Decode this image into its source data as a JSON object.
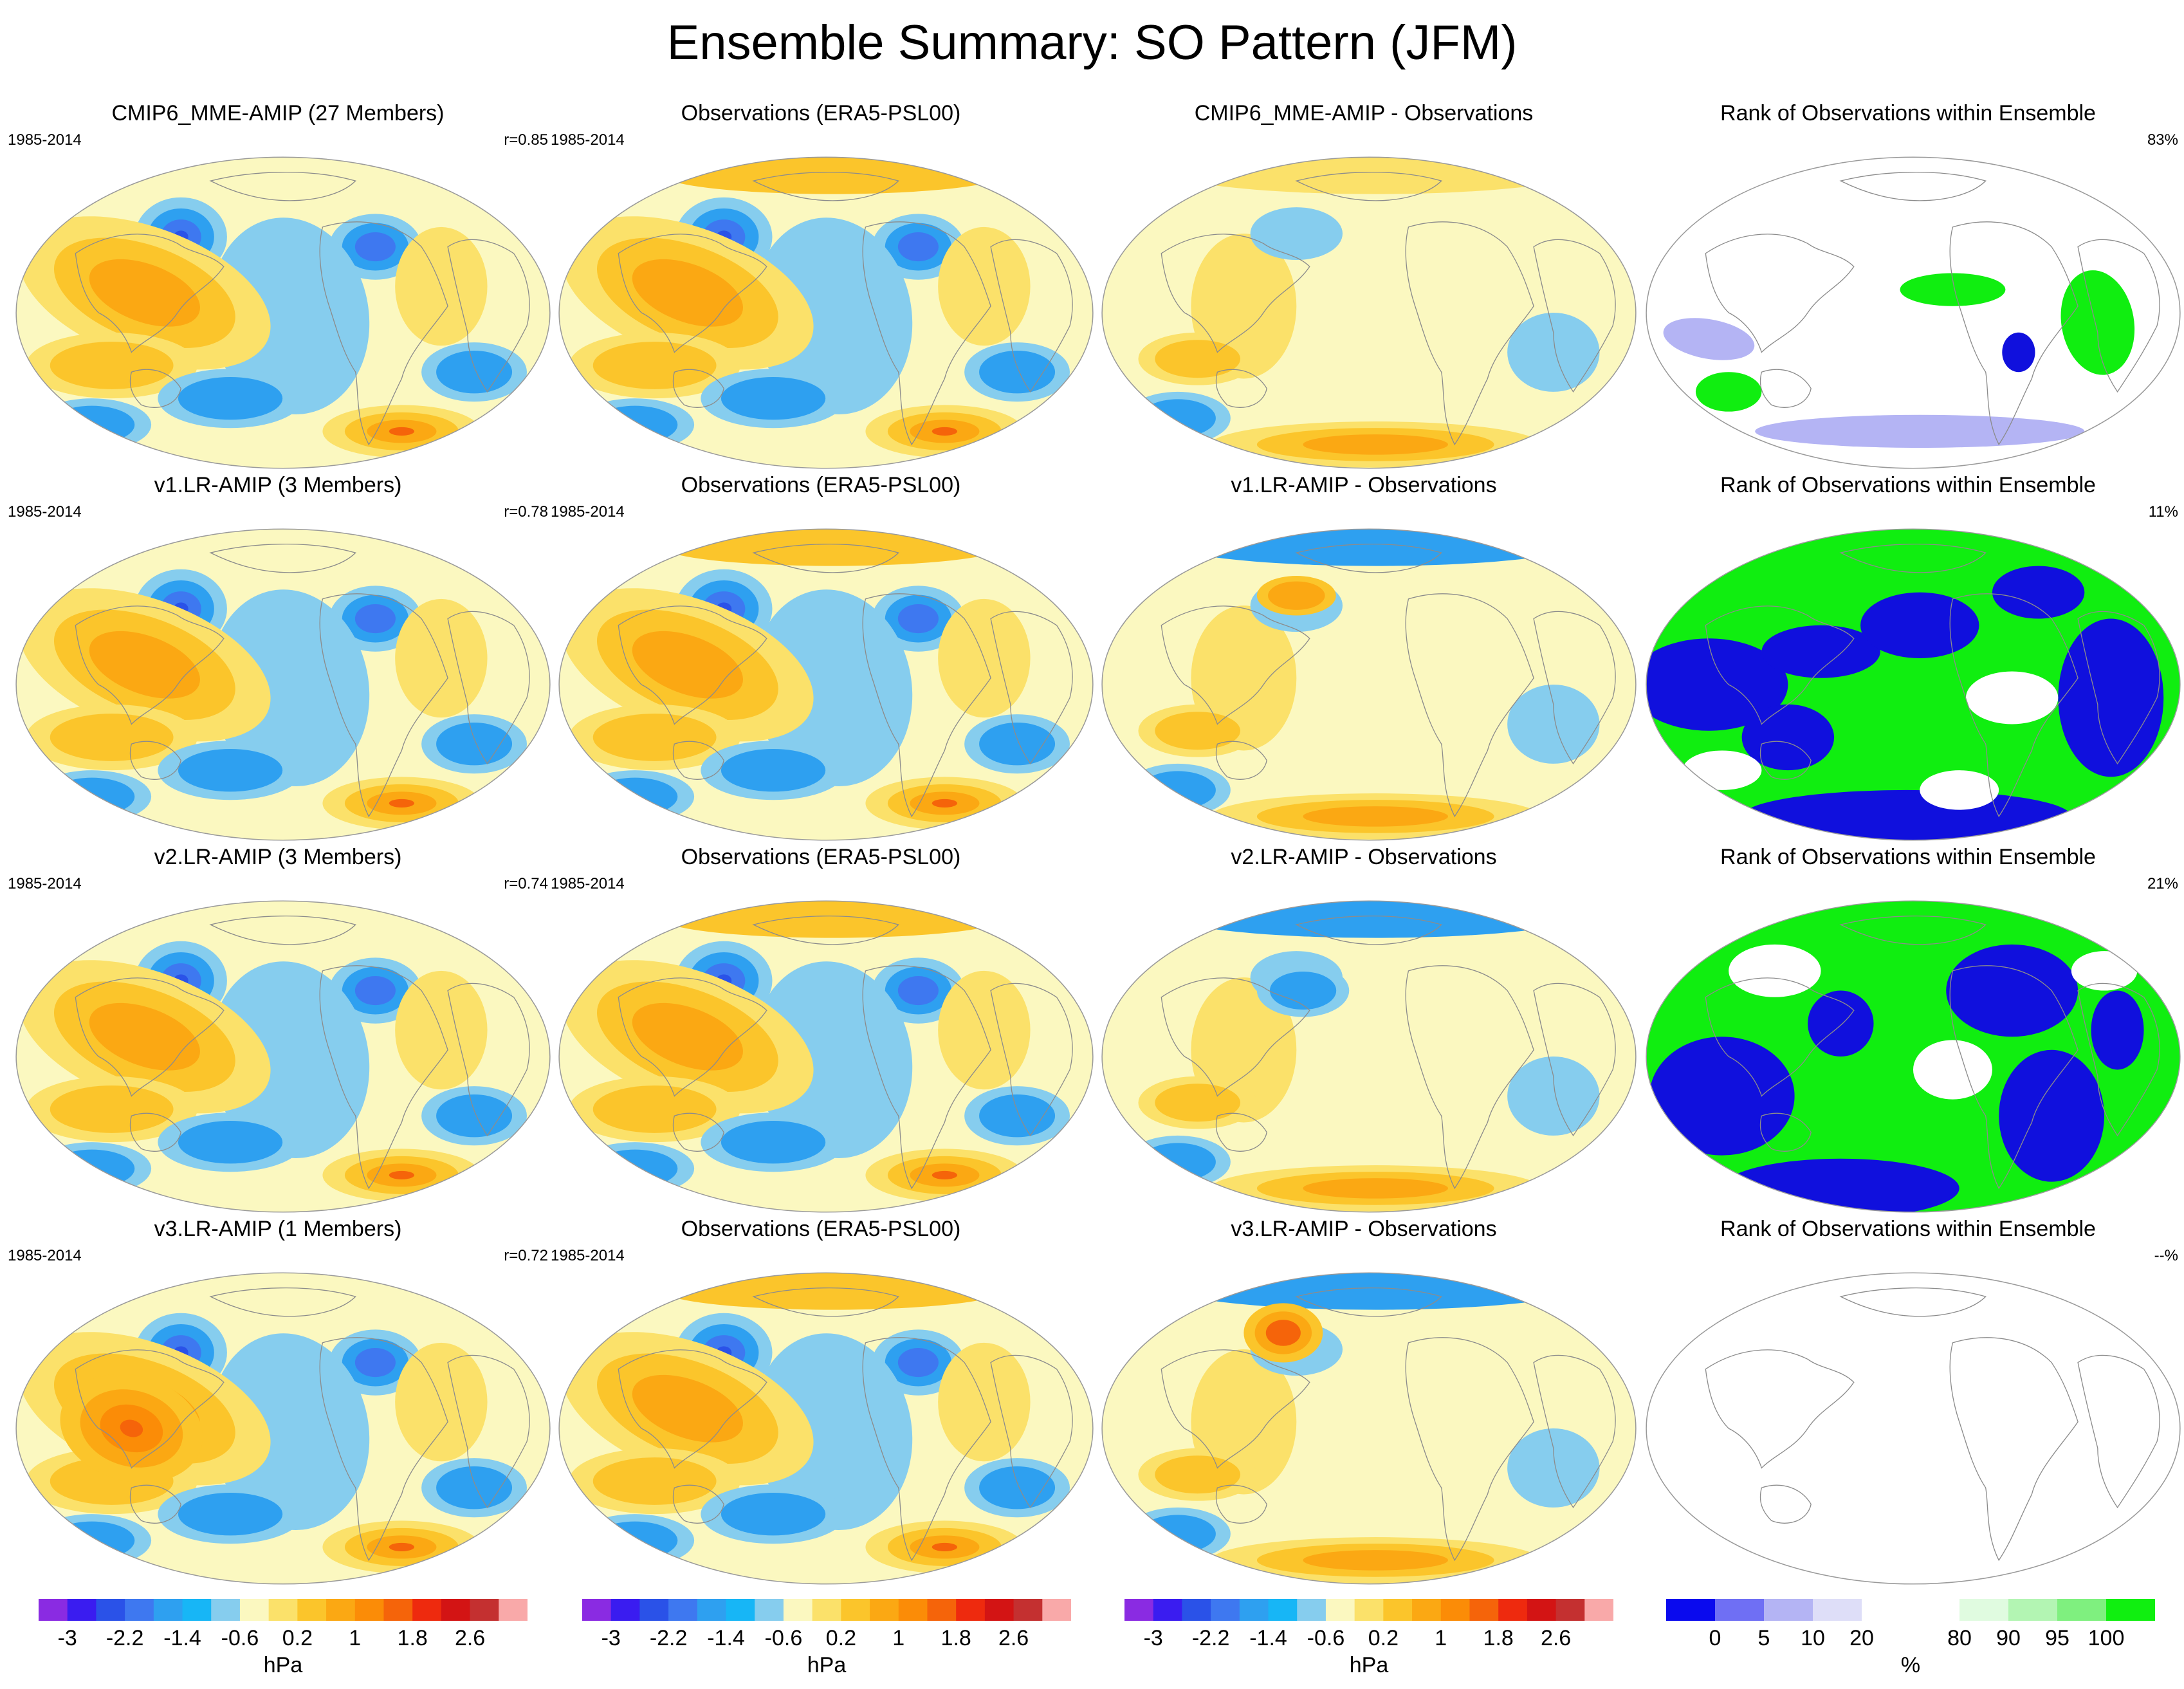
{
  "title": "Ensemble Summary: SO Pattern (JFM)",
  "rows": [
    {
      "panels": [
        {
          "title": "CMIP6_MME-AMIP (27 Members)",
          "period": "1985-2014",
          "stat": "r=0.85",
          "kind": "model"
        },
        {
          "title": "Observations (ERA5-PSL00)",
          "period": "1985-2014",
          "stat": "",
          "kind": "obs"
        },
        {
          "title": "CMIP6_MME-AMIP - Observations",
          "period": "",
          "stat": "",
          "kind": "diff"
        },
        {
          "title": "Rank of Observations within Ensemble",
          "period": "",
          "stat": "83%",
          "kind": "rank"
        }
      ]
    },
    {
      "panels": [
        {
          "title": "v1.LR-AMIP (3 Members)",
          "period": "1985-2014",
          "stat": "r=0.78",
          "kind": "model"
        },
        {
          "title": "Observations (ERA5-PSL00)",
          "period": "1985-2014",
          "stat": "",
          "kind": "obs"
        },
        {
          "title": "v1.LR-AMIP - Observations",
          "period": "",
          "stat": "",
          "kind": "diff"
        },
        {
          "title": "Rank of Observations within Ensemble",
          "period": "",
          "stat": "11%",
          "kind": "rank"
        }
      ]
    },
    {
      "panels": [
        {
          "title": "v2.LR-AMIP (3 Members)",
          "period": "1985-2014",
          "stat": "r=0.74",
          "kind": "model"
        },
        {
          "title": "Observations (ERA5-PSL00)",
          "period": "1985-2014",
          "stat": "",
          "kind": "obs"
        },
        {
          "title": "v2.LR-AMIP - Observations",
          "period": "",
          "stat": "",
          "kind": "diff"
        },
        {
          "title": "Rank of Observations within Ensemble",
          "period": "",
          "stat": "21%",
          "kind": "rank"
        }
      ]
    },
    {
      "panels": [
        {
          "title": "v3.LR-AMIP (1 Members)",
          "period": "1985-2014",
          "stat": "r=0.72",
          "kind": "model"
        },
        {
          "title": "Observations (ERA5-PSL00)",
          "period": "1985-2014",
          "stat": "",
          "kind": "obs"
        },
        {
          "title": "v3.LR-AMIP - Observations",
          "period": "",
          "stat": "",
          "kind": "diff"
        },
        {
          "title": "Rank of Observations within Ensemble",
          "period": "",
          "stat": "--%",
          "kind": "rank-empty"
        }
      ]
    }
  ],
  "colorbars": {
    "hpa": {
      "unit": "hPa",
      "colors": [
        "#8a2be2",
        "#3a1cf0",
        "#2a52e8",
        "#3e78f0",
        "#2ea0f0",
        "#17b6f6",
        "#86cdee",
        "#fbf8c0",
        "#fbe16a",
        "#fbc52b",
        "#fba813",
        "#fb8c07",
        "#f5640a",
        "#ee2a0e",
        "#d31414",
        "#c43030",
        "#f9a9a9"
      ],
      "ticks": [
        "-3",
        "-2.2",
        "-1.4",
        "-0.6",
        "0.2",
        "1",
        "1.8",
        "2.6"
      ],
      "tick_index": [
        1,
        3,
        5,
        7,
        9,
        11,
        13,
        15
      ]
    },
    "rank": {
      "unit": "%",
      "colors": [
        "#0a0aee",
        "#6f6ff4",
        "#b4b4f4",
        "#dedef8",
        "#ffffff",
        "#ffffff",
        "#e0fbe0",
        "#b3f5b3",
        "#7ff07f",
        "#10ef10"
      ],
      "ticks": [
        "0",
        "5",
        "10",
        "20",
        "80",
        "90",
        "95",
        "100"
      ],
      "tick_index": [
        1,
        2,
        3,
        4,
        6,
        7,
        8,
        9
      ]
    }
  }
}
